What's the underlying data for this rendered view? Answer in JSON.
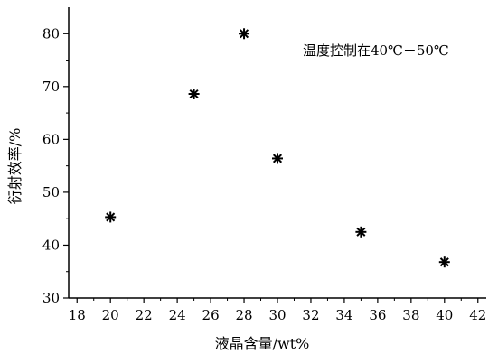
{
  "chart_data": {
    "type": "scatter",
    "title": "",
    "xlabel": "液晶含量/wt%",
    "ylabel": "衍射效率/%",
    "annotation": "温度控制在40℃－50℃",
    "marker": "asterisk",
    "xlim": [
      17.5,
      42.5
    ],
    "ylim": [
      30,
      85
    ],
    "xticks": [
      18,
      20,
      22,
      24,
      26,
      28,
      30,
      32,
      34,
      36,
      38,
      40,
      42
    ],
    "yticks": [
      30,
      40,
      50,
      60,
      70,
      80
    ],
    "grid": false,
    "series": [
      {
        "x": [
          20,
          25,
          28,
          30,
          35,
          40
        ],
        "y": [
          45.3,
          68.6,
          80.0,
          56.4,
          42.5,
          36.8
        ]
      }
    ],
    "colors": {
      "marker": "#000000",
      "axis": "#000000",
      "background": "#ffffff"
    }
  }
}
